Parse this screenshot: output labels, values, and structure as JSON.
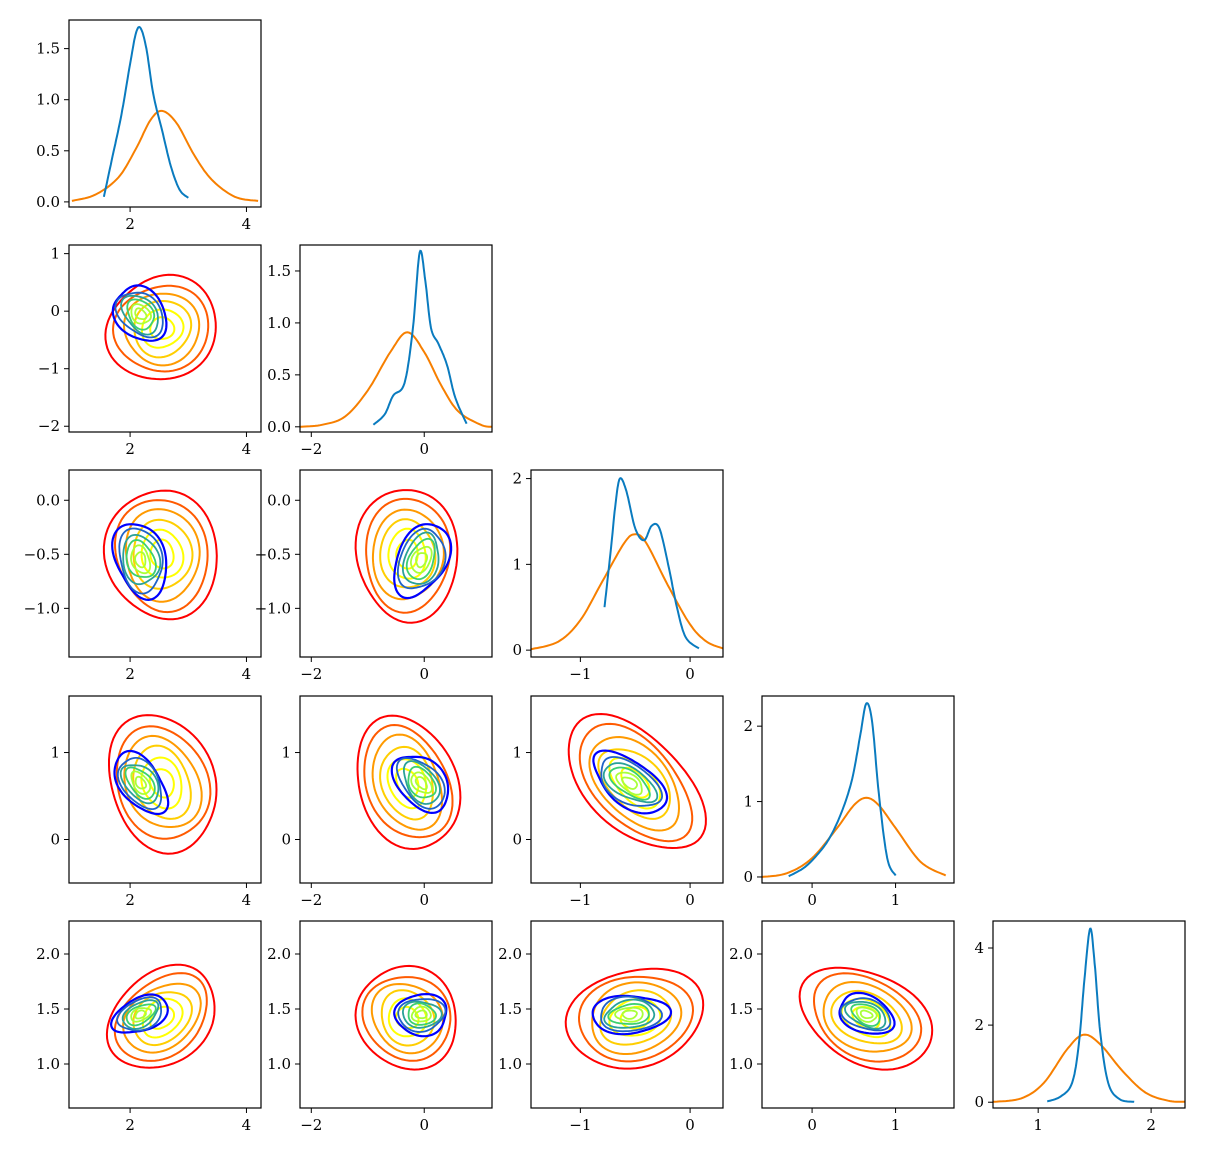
{
  "figure": {
    "type": "corner_plot"
  },
  "colors": {
    "posterior": "#0a7bbf",
    "prior": "#f77f00",
    "prior_contour_scale": [
      "#ff0000",
      "#ff5a00",
      "#ff9a00",
      "#ffce00",
      "#ffff00"
    ],
    "posterior_contour_scale": [
      "#0000ff",
      "#1f62c8",
      "#2aa198",
      "#3cd070",
      "#a8ff3a"
    ]
  },
  "chart_data": {
    "type": "corner",
    "n_params": 5,
    "params": [
      {
        "prior_mean": 2.55,
        "prior_sd": 0.45,
        "post_mean": 2.18,
        "post_sd": 0.23,
        "range": [
          0.95,
          4.25
        ]
      },
      {
        "prior_mean": -0.3,
        "prior_sd": 0.43,
        "post_mean": -0.05,
        "post_sd": 0.24,
        "range": [
          -2.2,
          1.2
        ]
      },
      {
        "prior_mean": -0.5,
        "prior_sd": 0.29,
        "post_mean": -0.55,
        "post_sd": 0.17,
        "range": [
          -1.45,
          0.3
        ]
      },
      {
        "prior_mean": 0.65,
        "prior_sd": 0.37,
        "post_mean": 0.65,
        "post_sd": 0.17,
        "range": [
          -0.6,
          1.7
        ]
      },
      {
        "prior_mean": 1.42,
        "prior_sd": 0.22,
        "post_mean": 1.45,
        "post_sd": 0.09,
        "range": [
          0.6,
          2.3
        ]
      }
    ],
    "diagonal": [
      {
        "ylim": [
          -0.05,
          1.78
        ],
        "yticks": [
          {
            "v": 0.0,
            "label": "0.0"
          },
          {
            "v": 0.5,
            "label": "0.5"
          },
          {
            "v": 1.0,
            "label": "1.0"
          },
          {
            "v": 1.5,
            "label": "1.5"
          }
        ],
        "xticks": [
          {
            "v": 2,
            "label": "2"
          },
          {
            "v": 4,
            "label": "4"
          }
        ],
        "posterior": {
          "x": [
            1.55,
            1.7,
            1.85,
            2.0,
            2.1,
            2.18,
            2.28,
            2.4,
            2.55,
            2.7,
            2.85,
            3.0
          ],
          "y": [
            0.05,
            0.45,
            0.85,
            1.35,
            1.65,
            1.7,
            1.5,
            1.05,
            0.7,
            0.35,
            0.12,
            0.04
          ]
        },
        "prior": {
          "x": [
            1.0,
            1.4,
            1.8,
            2.1,
            2.35,
            2.55,
            2.8,
            3.1,
            3.4,
            3.8,
            4.2
          ],
          "y": [
            0.01,
            0.07,
            0.24,
            0.52,
            0.8,
            0.89,
            0.77,
            0.46,
            0.22,
            0.05,
            0.01
          ]
        }
      },
      {
        "ylim": [
          -0.05,
          1.75
        ],
        "yticks": [
          {
            "v": 0.0,
            "label": "0.0"
          },
          {
            "v": 0.5,
            "label": "0.5"
          },
          {
            "v": 1.0,
            "label": "1.0"
          },
          {
            "v": 1.5,
            "label": "1.5"
          }
        ],
        "xticks": [
          {
            "v": -2,
            "label": "−2"
          },
          {
            "v": 0,
            "label": "0"
          }
        ],
        "posterior": {
          "x": [
            -0.9,
            -0.7,
            -0.55,
            -0.35,
            -0.2,
            -0.08,
            0.02,
            0.12,
            0.25,
            0.4,
            0.55,
            0.75
          ],
          "y": [
            0.02,
            0.12,
            0.3,
            0.42,
            0.95,
            1.68,
            1.4,
            0.95,
            0.8,
            0.6,
            0.28,
            0.03
          ]
        },
        "prior": {
          "x": [
            -2.2,
            -1.8,
            -1.4,
            -1.0,
            -0.6,
            -0.3,
            0.0,
            0.3,
            0.6,
            1.0,
            1.2
          ],
          "y": [
            0.0,
            0.02,
            0.1,
            0.35,
            0.72,
            0.91,
            0.72,
            0.4,
            0.15,
            0.02,
            0.0
          ]
        }
      },
      {
        "ylim": [
          -0.08,
          2.1
        ],
        "yticks": [
          {
            "v": 0,
            "label": "0"
          },
          {
            "v": 1,
            "label": "1"
          },
          {
            "v": 2,
            "label": "2"
          }
        ],
        "xticks": [
          {
            "v": -1,
            "label": "−1"
          },
          {
            "v": 0,
            "label": "0"
          }
        ],
        "posterior": {
          "x": [
            -0.78,
            -0.72,
            -0.68,
            -0.64,
            -0.58,
            -0.5,
            -0.42,
            -0.35,
            -0.28,
            -0.2,
            -0.12,
            -0.04,
            0.08
          ],
          "y": [
            0.5,
            1.2,
            1.7,
            2.0,
            1.85,
            1.42,
            1.28,
            1.45,
            1.42,
            1.0,
            0.5,
            0.15,
            0.02
          ]
        },
        "prior": {
          "x": [
            -1.45,
            -1.2,
            -1.0,
            -0.8,
            -0.6,
            -0.5,
            -0.4,
            -0.2,
            0.0,
            0.15,
            0.3
          ],
          "y": [
            0.01,
            0.1,
            0.35,
            0.8,
            1.25,
            1.35,
            1.25,
            0.75,
            0.3,
            0.1,
            0.02
          ]
        }
      },
      {
        "ylim": [
          -0.08,
          2.4
        ],
        "yticks": [
          {
            "v": 0,
            "label": "0"
          },
          {
            "v": 1,
            "label": "1"
          },
          {
            "v": 2,
            "label": "2"
          }
        ],
        "xticks": [
          {
            "v": 0,
            "label": "0"
          },
          {
            "v": 1,
            "label": "1"
          }
        ],
        "posterior": {
          "x": [
            -0.28,
            -0.1,
            0.05,
            0.2,
            0.35,
            0.48,
            0.58,
            0.65,
            0.72,
            0.8,
            0.9,
            1.0
          ],
          "y": [
            0.01,
            0.12,
            0.28,
            0.5,
            0.85,
            1.3,
            1.9,
            2.3,
            2.05,
            1.1,
            0.25,
            0.02
          ]
        },
        "prior": {
          "x": [
            -0.6,
            -0.3,
            0.0,
            0.3,
            0.5,
            0.65,
            0.8,
            1.0,
            1.3,
            1.6
          ],
          "y": [
            0.0,
            0.05,
            0.25,
            0.65,
            0.95,
            1.05,
            0.95,
            0.65,
            0.2,
            0.02
          ]
        }
      },
      {
        "ylim": [
          -0.15,
          4.7
        ],
        "yticks": [
          {
            "v": 0,
            "label": "0"
          },
          {
            "v": 2,
            "label": "2"
          },
          {
            "v": 4,
            "label": "4"
          }
        ],
        "xticks": [
          {
            "v": 1,
            "label": "1"
          },
          {
            "v": 2,
            "label": "2"
          }
        ],
        "posterior": {
          "x": [
            1.08,
            1.2,
            1.3,
            1.36,
            1.41,
            1.46,
            1.5,
            1.55,
            1.62,
            1.72,
            1.85
          ],
          "y": [
            0.02,
            0.15,
            0.5,
            1.5,
            3.2,
            4.5,
            3.6,
            1.8,
            0.5,
            0.08,
            0.01
          ]
        },
        "prior": {
          "x": [
            0.6,
            0.85,
            1.05,
            1.25,
            1.4,
            1.55,
            1.75,
            1.95,
            2.15,
            2.3
          ],
          "y": [
            0.01,
            0.1,
            0.5,
            1.35,
            1.75,
            1.5,
            0.8,
            0.25,
            0.04,
            0.01
          ]
        }
      }
    ],
    "offdiag": [
      {
        "row": 1,
        "col": 0,
        "prior_rho": 0.05,
        "post_rho": -0.3
      },
      {
        "row": 2,
        "col": 0,
        "prior_rho": -0.05,
        "post_rho": -0.2
      },
      {
        "row": 2,
        "col": 1,
        "prior_rho": 0.0,
        "post_rho": 0.3
      },
      {
        "row": 3,
        "col": 0,
        "prior_rho": -0.2,
        "post_rho": -0.45
      },
      {
        "row": 3,
        "col": 1,
        "prior_rho": -0.25,
        "post_rho": -0.4
      },
      {
        "row": 3,
        "col": 2,
        "prior_rho": -0.5,
        "post_rho": -0.55
      },
      {
        "row": 4,
        "col": 0,
        "prior_rho": 0.3,
        "post_rho": 0.4
      },
      {
        "row": 4,
        "col": 1,
        "prior_rho": -0.1,
        "post_rho": 0.0
      },
      {
        "row": 4,
        "col": 2,
        "prior_rho": 0.15,
        "post_rho": 0.1
      },
      {
        "row": 4,
        "col": 3,
        "prior_rho": -0.3,
        "post_rho": -0.35
      }
    ],
    "offdiag_xticks": [
      [
        {
          "v": 2,
          "label": "2"
        },
        {
          "v": 4,
          "label": "4"
        }
      ],
      [
        {
          "v": -2,
          "label": "−2"
        },
        {
          "v": 0,
          "label": "0"
        }
      ],
      [
        {
          "v": -1,
          "label": "−1"
        },
        {
          "v": 0,
          "label": "0"
        }
      ],
      [
        {
          "v": 0,
          "label": "0"
        },
        {
          "v": 1,
          "label": "1"
        }
      ]
    ],
    "offdiag_yticks": [
      null,
      [
        {
          "v": -2,
          "label": "−2"
        },
        {
          "v": -1,
          "label": "−1"
        },
        {
          "v": 0,
          "label": "0"
        },
        {
          "v": 1,
          "label": "1"
        }
      ],
      [
        {
          "v": -1.0,
          "label": "−1.0"
        },
        {
          "v": -0.5,
          "label": "−0.5"
        },
        {
          "v": 0.0,
          "label": "0.0"
        }
      ],
      [
        {
          "v": 0,
          "label": "0"
        },
        {
          "v": 1,
          "label": "1"
        }
      ],
      [
        {
          "v": 1.0,
          "label": "1.0"
        },
        {
          "v": 1.5,
          "label": "1.5"
        },
        {
          "v": 2.0,
          "label": "2.0"
        }
      ]
    ],
    "offdiag_ylim": [
      null,
      [
        -2.1,
        1.15
      ],
      [
        -1.45,
        0.28
      ],
      [
        -0.5,
        1.65
      ],
      [
        0.6,
        2.3
      ]
    ],
    "prior_contour_levels": 6,
    "posterior_contour_levels": 6
  }
}
